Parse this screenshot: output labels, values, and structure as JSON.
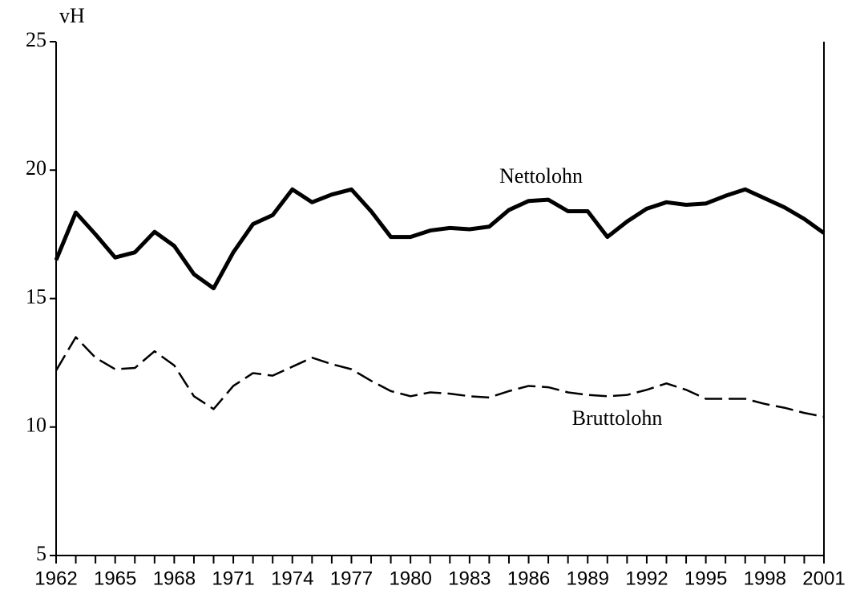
{
  "chart_data": {
    "type": "line",
    "ylabel": "vH",
    "x": [
      1962,
      1963,
      1964,
      1965,
      1966,
      1967,
      1968,
      1969,
      1970,
      1971,
      1972,
      1973,
      1974,
      1975,
      1976,
      1977,
      1978,
      1979,
      1980,
      1981,
      1982,
      1983,
      1984,
      1985,
      1986,
      1987,
      1988,
      1989,
      1990,
      1991,
      1992,
      1993,
      1994,
      1995,
      1996,
      1997,
      1998,
      1999,
      2000,
      2001
    ],
    "xlim": [
      1962,
      2001
    ],
    "xticks": [
      1962,
      1965,
      1968,
      1971,
      1974,
      1977,
      1980,
      1983,
      1986,
      1989,
      1992,
      1995,
      1998,
      2001
    ],
    "ylim": [
      5,
      25
    ],
    "yticks": [
      5,
      10,
      15,
      20,
      25
    ],
    "series": [
      {
        "name": "Nettolohn",
        "color": "#000000",
        "line_style": "solid",
        "values": [
          16.5,
          18.35,
          17.5,
          16.6,
          16.8,
          17.6,
          17.05,
          15.95,
          15.4,
          16.8,
          17.9,
          18.25,
          19.25,
          18.75,
          19.05,
          19.25,
          18.4,
          17.4,
          17.4,
          17.65,
          17.75,
          17.7,
          17.8,
          18.45,
          18.8,
          18.85,
          18.4,
          18.4,
          17.4,
          18.0,
          18.5,
          18.75,
          18.65,
          18.7,
          19.0,
          19.25,
          18.9,
          18.55,
          18.1,
          17.55
        ]
      },
      {
        "name": "Bruttolohn",
        "color": "#000000",
        "line_style": "dashed",
        "values": [
          12.2,
          13.5,
          12.7,
          12.25,
          12.3,
          12.95,
          12.4,
          11.2,
          10.7,
          11.6,
          12.1,
          12.0,
          12.35,
          12.7,
          12.45,
          12.25,
          11.8,
          11.4,
          11.2,
          11.35,
          11.3,
          11.2,
          11.15,
          11.4,
          11.6,
          11.55,
          11.35,
          11.25,
          11.2,
          11.25,
          11.45,
          11.7,
          11.45,
          11.1,
          11.1,
          11.1,
          10.9,
          10.75,
          10.55,
          10.4
        ]
      }
    ]
  }
}
